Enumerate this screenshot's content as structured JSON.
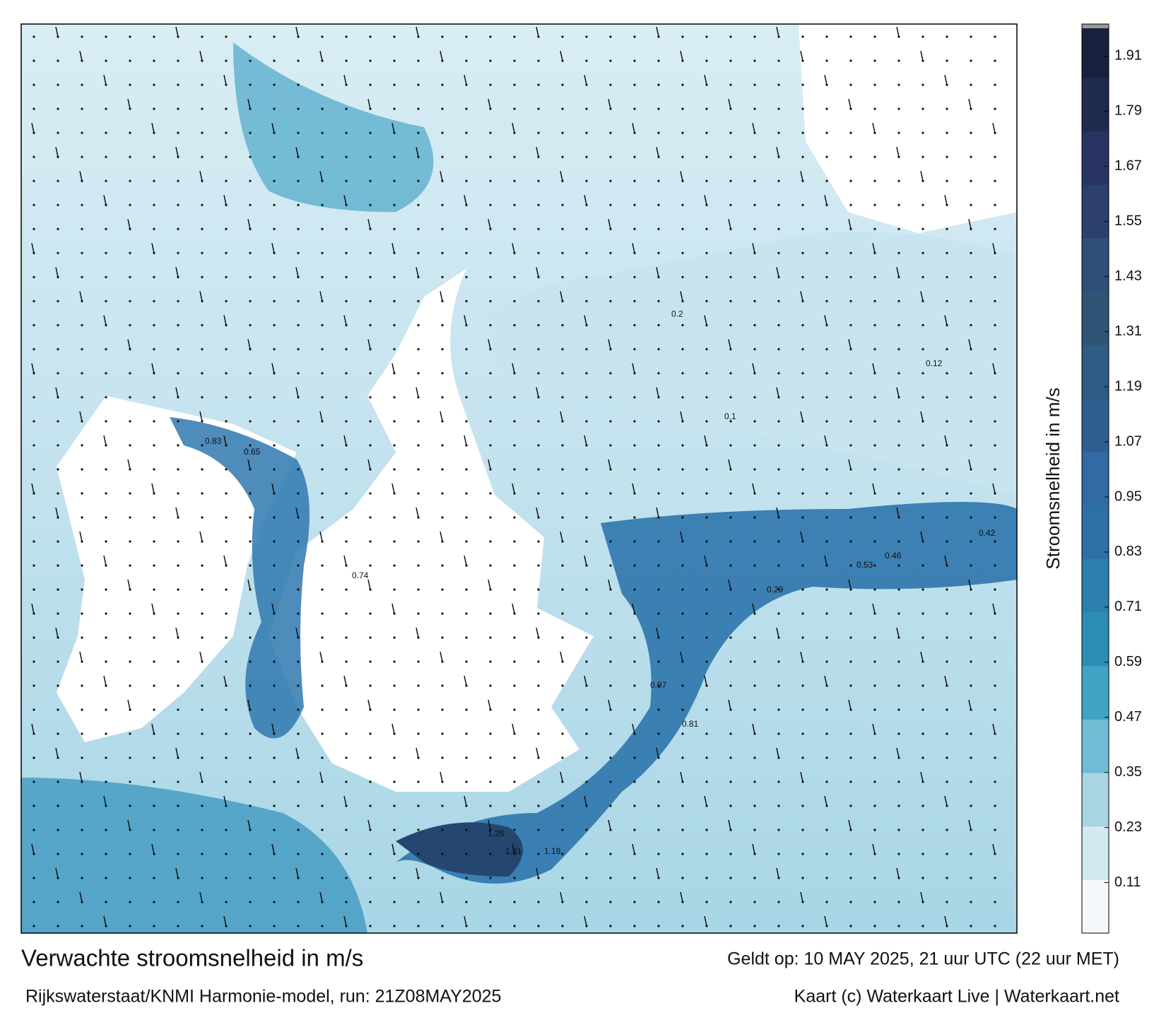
{
  "chart_data": {
    "type": "map",
    "title": "Verwachte stroomsnelheid in m/s",
    "subtitle": "Rijkswaterstaat/KNMI Harmonie-model, run: 21Z08MAY2025",
    "valid_time": "Geldt op: 10 MAY 2025, 21 uur UTC (22 uur MET)",
    "credit": "Kaart (c) Waterkaart Live | Waterkaart.net",
    "colorbar_label": "Stroomsnelheid in m/s",
    "clim": [
      0,
      1.98
    ],
    "cticks": [
      0.11,
      0.23,
      0.35,
      0.47,
      0.59,
      0.71,
      0.83,
      0.95,
      1.07,
      1.19,
      1.31,
      1.43,
      1.55,
      1.67,
      1.79,
      1.91
    ],
    "colors": [
      "#f4f9fb",
      "#d3e9f0",
      "#a9d5e3",
      "#6fbdd4",
      "#3ea3c4",
      "#2b8fb5",
      "#2a7fae",
      "#2e6fa8",
      "#316aa4",
      "#2f5e93",
      "#2d5c85",
      "#2e5576",
      "#2f4f7a",
      "#2c3f6e",
      "#273463",
      "#1f2a4f",
      "#19203d"
    ],
    "point_labels": [
      "0.83",
      "0.65",
      "0.74",
      "0.97",
      "0.81",
      "1.26",
      "1.31",
      "1.18",
      "0.53",
      "0.46",
      "0.42",
      "0.29",
      "0.2",
      "0.12",
      "0.1"
    ]
  }
}
